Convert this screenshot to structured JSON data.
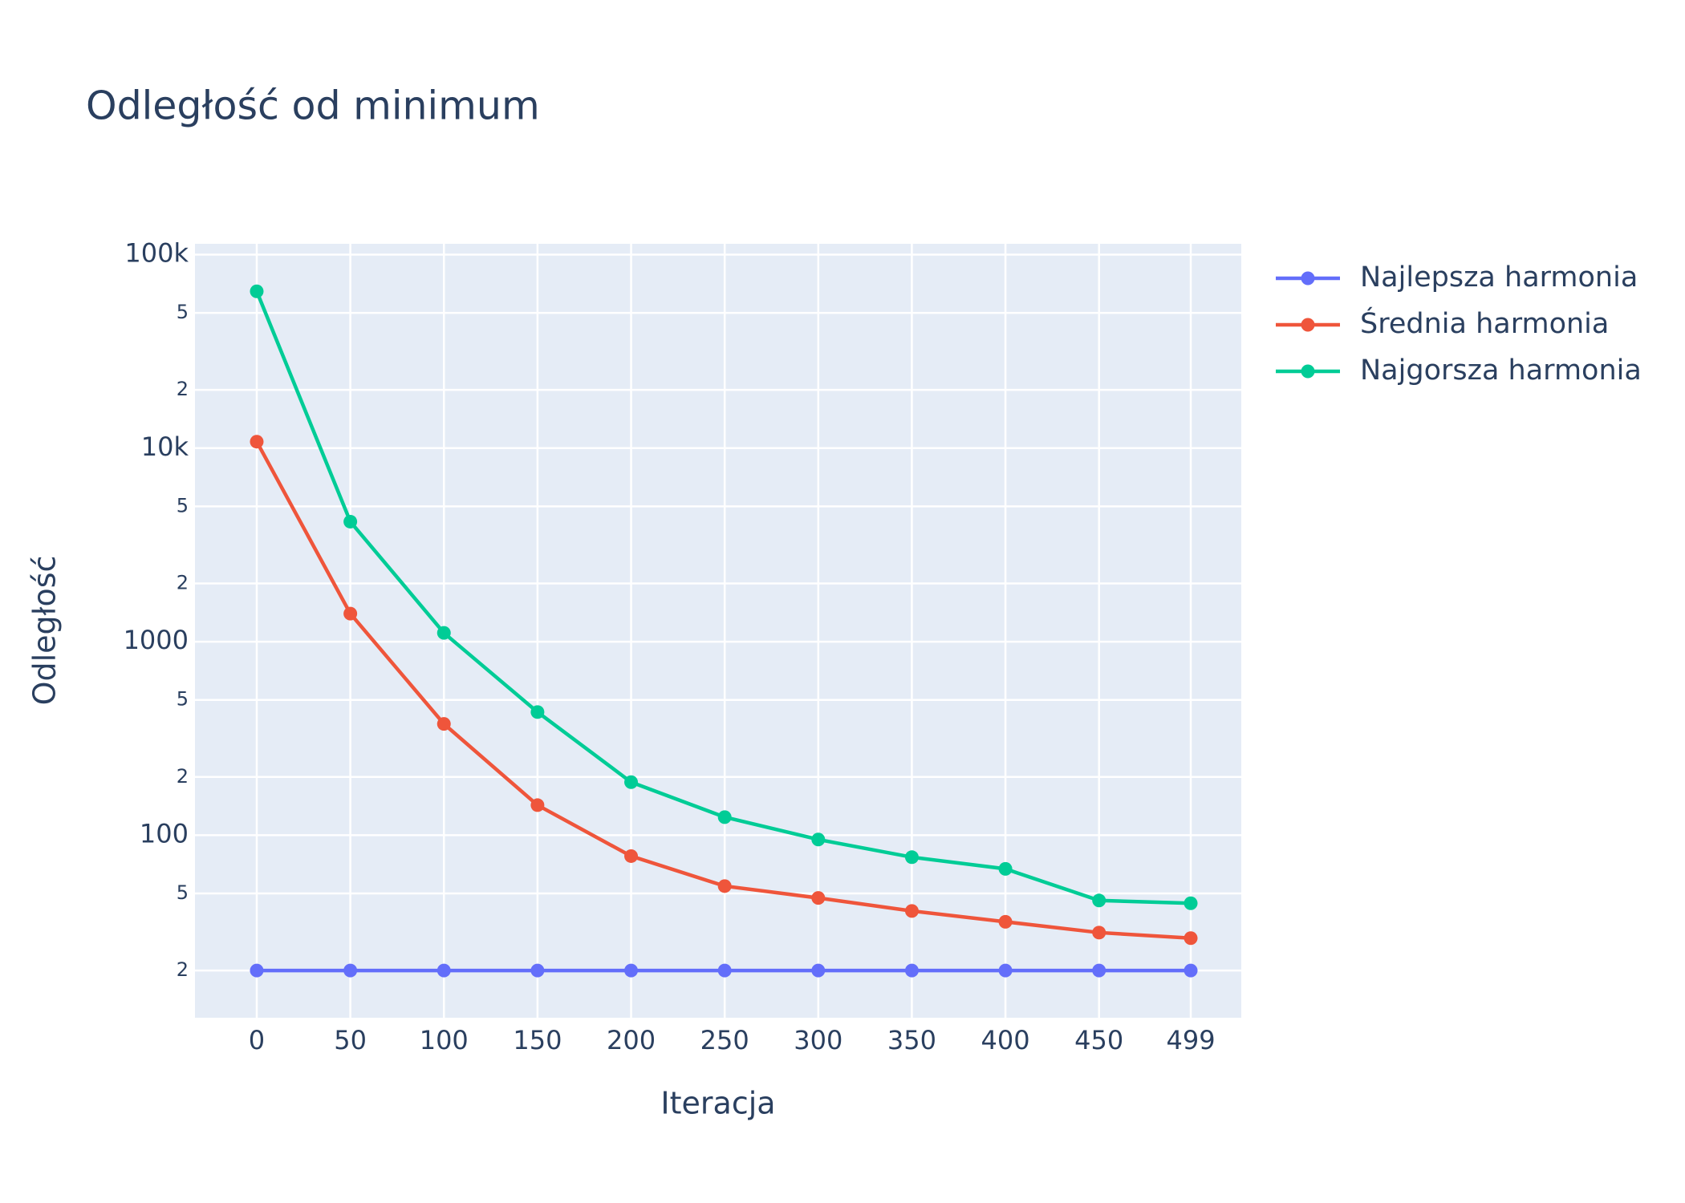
{
  "chart_data": {
    "type": "line",
    "title": "Odległość od minimum",
    "x_label": "Iteracja",
    "y_label": "Odległość",
    "x": [
      0,
      50,
      100,
      150,
      200,
      250,
      300,
      350,
      400,
      450,
      499
    ],
    "series": [
      {
        "name": "Najlepsza harmonia",
        "color": "#636efa",
        "values": [
          20,
          20,
          20,
          20,
          20,
          20,
          20,
          20,
          20,
          20,
          20
        ]
      },
      {
        "name": "Średnia harmonia",
        "color": "#ef553b",
        "values": [
          10800,
          1396,
          376,
          143,
          78,
          54.6,
          47.4,
          40.6,
          35.7,
          31.4,
          29.4
        ]
      },
      {
        "name": "Najgorsza harmonia",
        "color": "#00cc96",
        "values": [
          64600,
          4170,
          1110,
          433,
          188,
          124,
          95,
          77,
          67,
          46,
          44.5
        ]
      }
    ],
    "xlim": [
      -33,
      526
    ],
    "xticks": [
      0,
      50,
      100,
      150,
      200,
      250,
      300,
      350,
      400,
      450,
      499
    ],
    "ylim": [
      11.4,
      113700
    ],
    "log_y": true,
    "yticks": [
      {
        "value": 100000,
        "label": "100k"
      },
      {
        "value": 50000,
        "label": "5"
      },
      {
        "value": 20000,
        "label": "2"
      },
      {
        "value": 10000,
        "label": "10k"
      },
      {
        "value": 5000,
        "label": "5"
      },
      {
        "value": 2000,
        "label": "2"
      },
      1000,
      {
        "value": 500,
        "label": "5"
      },
      {
        "value": 200,
        "label": "2"
      },
      100,
      {
        "value": 50,
        "label": "5"
      },
      {
        "value": 20,
        "label": "2"
      }
    ],
    "grid": true,
    "legend": "top-right"
  }
}
